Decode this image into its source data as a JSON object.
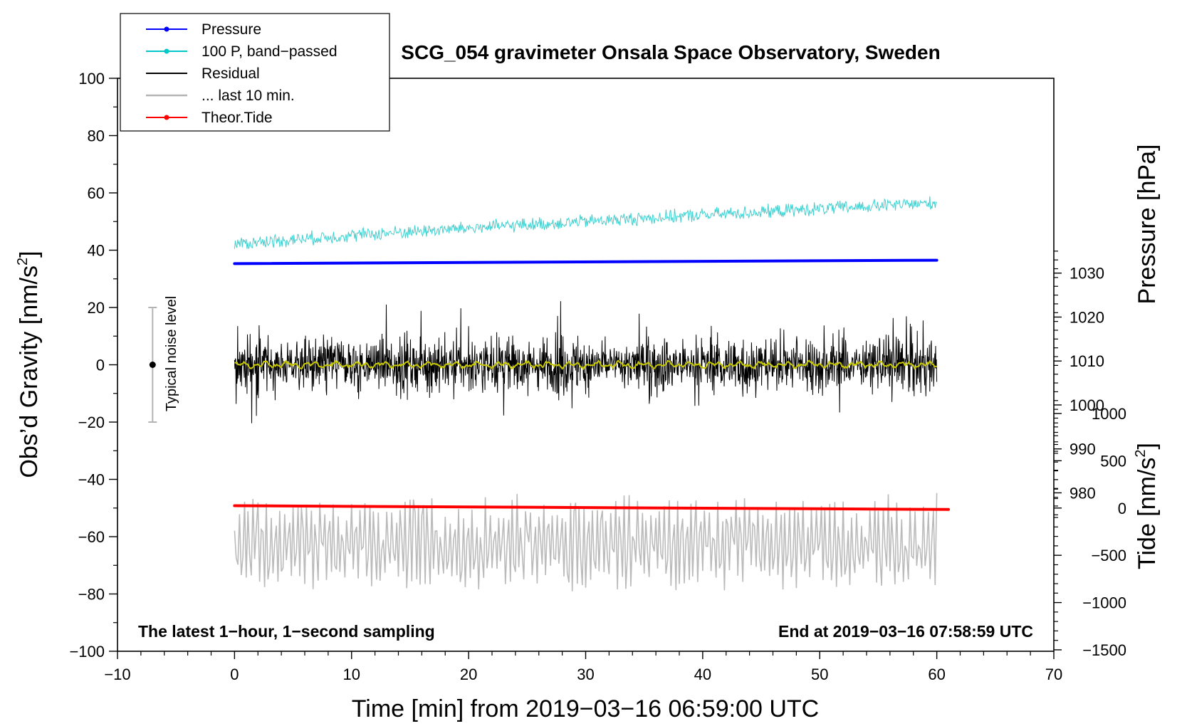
{
  "chart_data": {
    "type": "line",
    "title": "SCG_054 gravimeter Onsala Space Observatory, Sweden",
    "xlabel": "Time [min] from 2019−03−16 06:59:00 UTC",
    "ylabel_left": "Obs’d Gravity [nm/s",
    "ylabel_left_suffix": "]",
    "ylabel_right_pressure": "Pressure [hPa]",
    "ylabel_right_tide": "Tide [nm/s",
    "ylabel_right_tide_suffix": "]",
    "unit_superscript": "2",
    "xlim": [
      -10,
      70
    ],
    "ylim_left": [
      -100,
      100
    ],
    "x_ticks": [
      "−10",
      "0",
      "10",
      "20",
      "30",
      "40",
      "50",
      "60",
      "70"
    ],
    "y_ticks_left": [
      "100",
      "80",
      "60",
      "40",
      "20",
      "0",
      "−20",
      "−40",
      "−60",
      "−80",
      "−100"
    ],
    "pressure_ticks": [
      "1030",
      "1020",
      "1010",
      "1000",
      "990",
      "980"
    ],
    "tide_ticks": [
      "1000",
      "500",
      "0",
      "−500",
      "−1000",
      "−1500"
    ],
    "annotations": {
      "bottom_left": "The latest 1−hour, 1−second sampling",
      "bottom_right": "End at 2019−03−16 07:58:59 UTC",
      "noise_label": "Typical noise level"
    },
    "noise_bar": {
      "x": -7,
      "center": 0,
      "half_range": 20
    },
    "legend": [
      {
        "label": "Pressure",
        "color": "#0000ff",
        "marker": true
      },
      {
        "label": "100 P, band−passed",
        "color": "#00c8c8",
        "marker": true
      },
      {
        "label": "Residual",
        "color": "#000000",
        "marker": false
      },
      {
        "label": "... last 10 min.",
        "color": "#b4b4b4",
        "marker": false
      },
      {
        "label": "Theor.Tide",
        "color": "#ff0000",
        "marker": true
      }
    ],
    "series": [
      {
        "name": "Pressure",
        "color": "#0000ff",
        "x_range": [
          0,
          60
        ],
        "y_start": 35.3,
        "y_end": 36.5,
        "unit": "nm/s2 plot units"
      },
      {
        "name": "100 P, band−passed",
        "color": "#40d0d0",
        "x_range": [
          0,
          60
        ],
        "y_start": 42,
        "y_end": 56.5,
        "noise_amp": 4
      },
      {
        "name": "Residual",
        "color": "#000000",
        "x_range": [
          0,
          60
        ],
        "y_mean": 0,
        "y_max": 23.5,
        "y_min": -24
      },
      {
        "name": "Residual smoothed",
        "color": "#c8c800",
        "x_range": [
          0,
          60
        ],
        "y_mean": 0
      },
      {
        "name": "... last 10 min.",
        "color": "#bbbbbb",
        "x_range": [
          0,
          60
        ],
        "y_mean": -62,
        "y_max": -41,
        "y_min": -83
      },
      {
        "name": "Theor.Tide",
        "color": "#ff0000",
        "x_range": [
          0,
          61
        ],
        "y_start": -49.2,
        "y_end": -50.5
      }
    ],
    "grid": false
  }
}
